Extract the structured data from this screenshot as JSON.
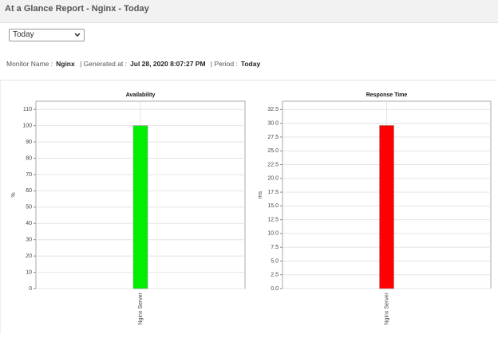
{
  "header": {
    "title": "At a Glance Report - Nginx - Today"
  },
  "filter": {
    "selected": "Today"
  },
  "report_info": {
    "monitor_name_label": "Monitor Name :",
    "monitor_name": "Nginx",
    "generated_label": "| Generated at :",
    "generated_at": "Jul 28, 2020 8:07:27 PM",
    "period_label": "| Period :",
    "period": "Today"
  },
  "chart_data": [
    {
      "type": "bar",
      "title": "Availability",
      "y_label": "%",
      "categories": [
        "Nginx Server"
      ],
      "values": [
        100
      ],
      "color": "#00ee00",
      "ylim": [
        0,
        115
      ],
      "yticks": [
        0,
        10,
        20,
        30,
        40,
        50,
        60,
        70,
        80,
        90,
        100,
        110
      ],
      "grid": true
    },
    {
      "type": "bar",
      "title": "Response Time",
      "y_label": "ms",
      "categories": [
        "Nginx Server"
      ],
      "values": [
        29.6
      ],
      "color": "#ff0000",
      "ylim": [
        0,
        34
      ],
      "yticks": [
        {
          "value": 0,
          "label": "0.0"
        },
        2.5,
        {
          "value": 5,
          "label": "5.0"
        },
        7.5,
        {
          "value": 10,
          "label": "10.0"
        },
        12.5,
        {
          "value": 15,
          "label": "15.0"
        },
        17.5,
        {
          "value": 20,
          "label": "20.0"
        },
        22.5,
        {
          "value": 25,
          "label": "25.0"
        },
        27.5,
        {
          "value": 30,
          "label": "30.0"
        },
        32.5
      ],
      "grid": true
    }
  ]
}
